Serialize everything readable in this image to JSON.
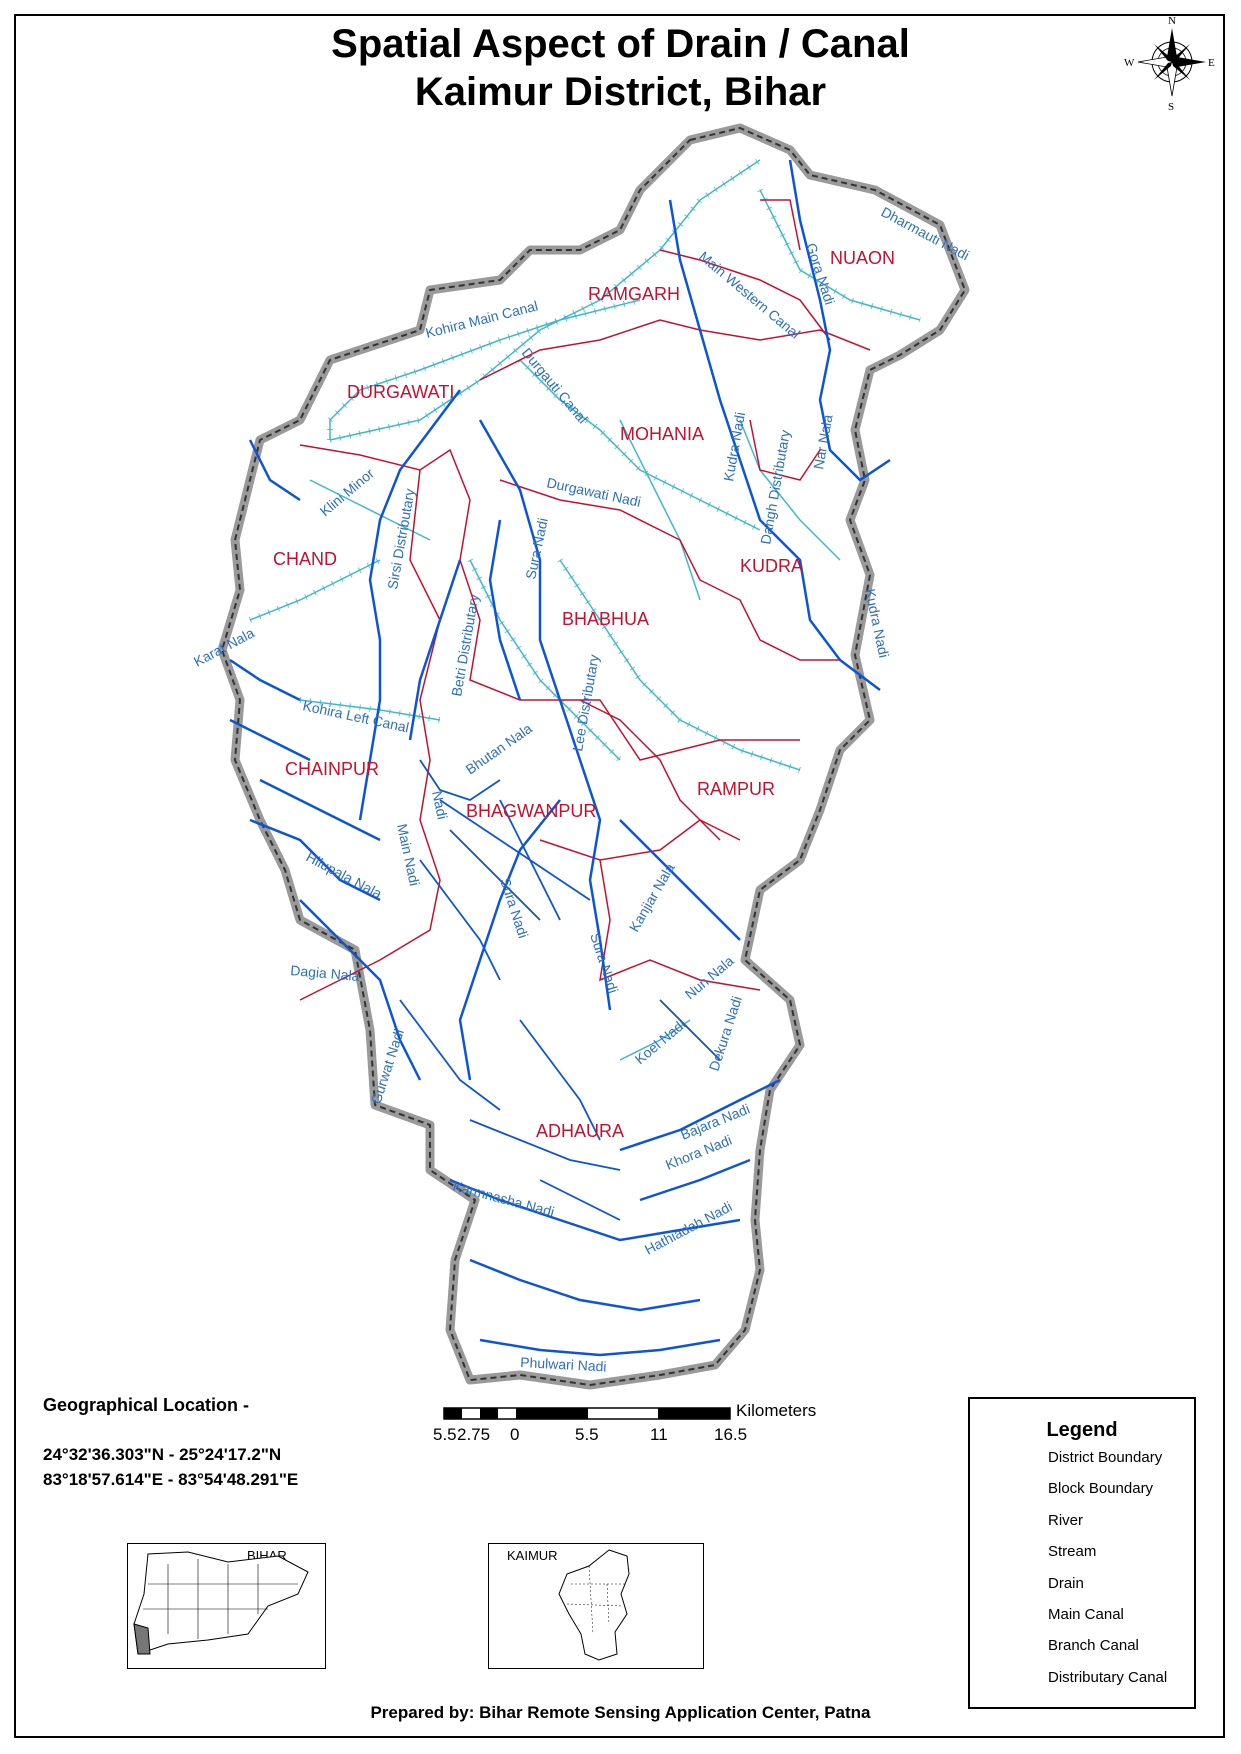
{
  "title": {
    "line1": "Spatial Aspect of Drain / Canal",
    "line2": "Kaimur District, Bihar"
  },
  "compass": {
    "n": "N",
    "s": "S",
    "e": "E",
    "w": "W",
    "icon": "compass-rose-icon"
  },
  "blocks": {
    "nuaon": "NUAON",
    "ramgarh": "RAMGARH",
    "durgawati": "DURGAWATI",
    "mohania": "MOHANIA",
    "chand": "CHAND",
    "kudra": "KUDRA",
    "bhabhua": "BHABHUA",
    "chainpur": "CHAINPUR",
    "rampur": "RAMPUR",
    "bhagwanpur": "BHAGWANPUR",
    "adhaura": "ADHAURA"
  },
  "waterways": {
    "dharmauti": "Dharmauti Nadi",
    "gora": "Gora Nadi",
    "western_canal": "Main Western Canal",
    "kohira_main": "Kohira Main Canal",
    "durgauti_canal": "Durgauti Canal",
    "kudra_nadi": "Kudra Nadi",
    "dahgh": "Dahgh Distributary",
    "nar": "Nar Nala",
    "durgawati_nadi": "Durgawati Nadi",
    "klini": "Klini Minor",
    "sirsi": "Sirsi Distributary",
    "sura_nadi": "Sura Nadi",
    "kudra_nadi2": "Kudra Nadi",
    "karat": "Karat Nala",
    "betri": "Betri Distributary",
    "lee": "Lee Distributary",
    "kohira_left": "Kohira Left Canal",
    "bhutan": "Bhutan Nala",
    "kali_nadi": "Nadi",
    "main_nadi": "Main Nadi",
    "hilupala": "Hilupala Nala",
    "nadi_s": "Sura Nadi",
    "sura_nadi2": "Sura Nadi",
    "kanjiar": "Kanjiar Nala",
    "nun": "Nun Nala",
    "dagia": "Dagia Nala",
    "koel": "Koel Nadi",
    "dekura": "Dekura Nadi",
    "gurwat": "Gurwat Nadi",
    "bajara": "Bajara Nadi",
    "khora": "Khora Nadi",
    "karmnasha": "Karmnasha Nadi",
    "hathiadah": "Hathiadah Nadi",
    "phulwari": "Phulwari Nadi"
  },
  "geo": {
    "title": "Geographical Location -",
    "lat": "24°32'36.303\"N - 25°24'17.2\"N",
    "lon": "83°18'57.614\"E  - 83°54'48.291\"E"
  },
  "scale": {
    "ticks": [
      "5.5",
      "2.75",
      "0",
      "5.5",
      "11",
      "16.5"
    ],
    "unit": "Kilometers"
  },
  "legend": {
    "title": "Legend",
    "items": [
      {
        "label": "District Boundary"
      },
      {
        "label": "Block Boundary"
      },
      {
        "label": "River"
      },
      {
        "label": "Stream"
      },
      {
        "label": "Drain"
      },
      {
        "label": "Main Canal"
      },
      {
        "label": "Branch Canal"
      },
      {
        "label": "Distributary Canal"
      }
    ]
  },
  "insets": {
    "bihar": "BIHAR",
    "kaimur": "KAIMUR"
  },
  "credit": "Prepared by: Bihar Remote Sensing Application Center, Patna",
  "colors": {
    "district": "#8a8a8a",
    "block": "#c8102e",
    "river": "#0b55d6",
    "canal": "#3fb7cf"
  }
}
